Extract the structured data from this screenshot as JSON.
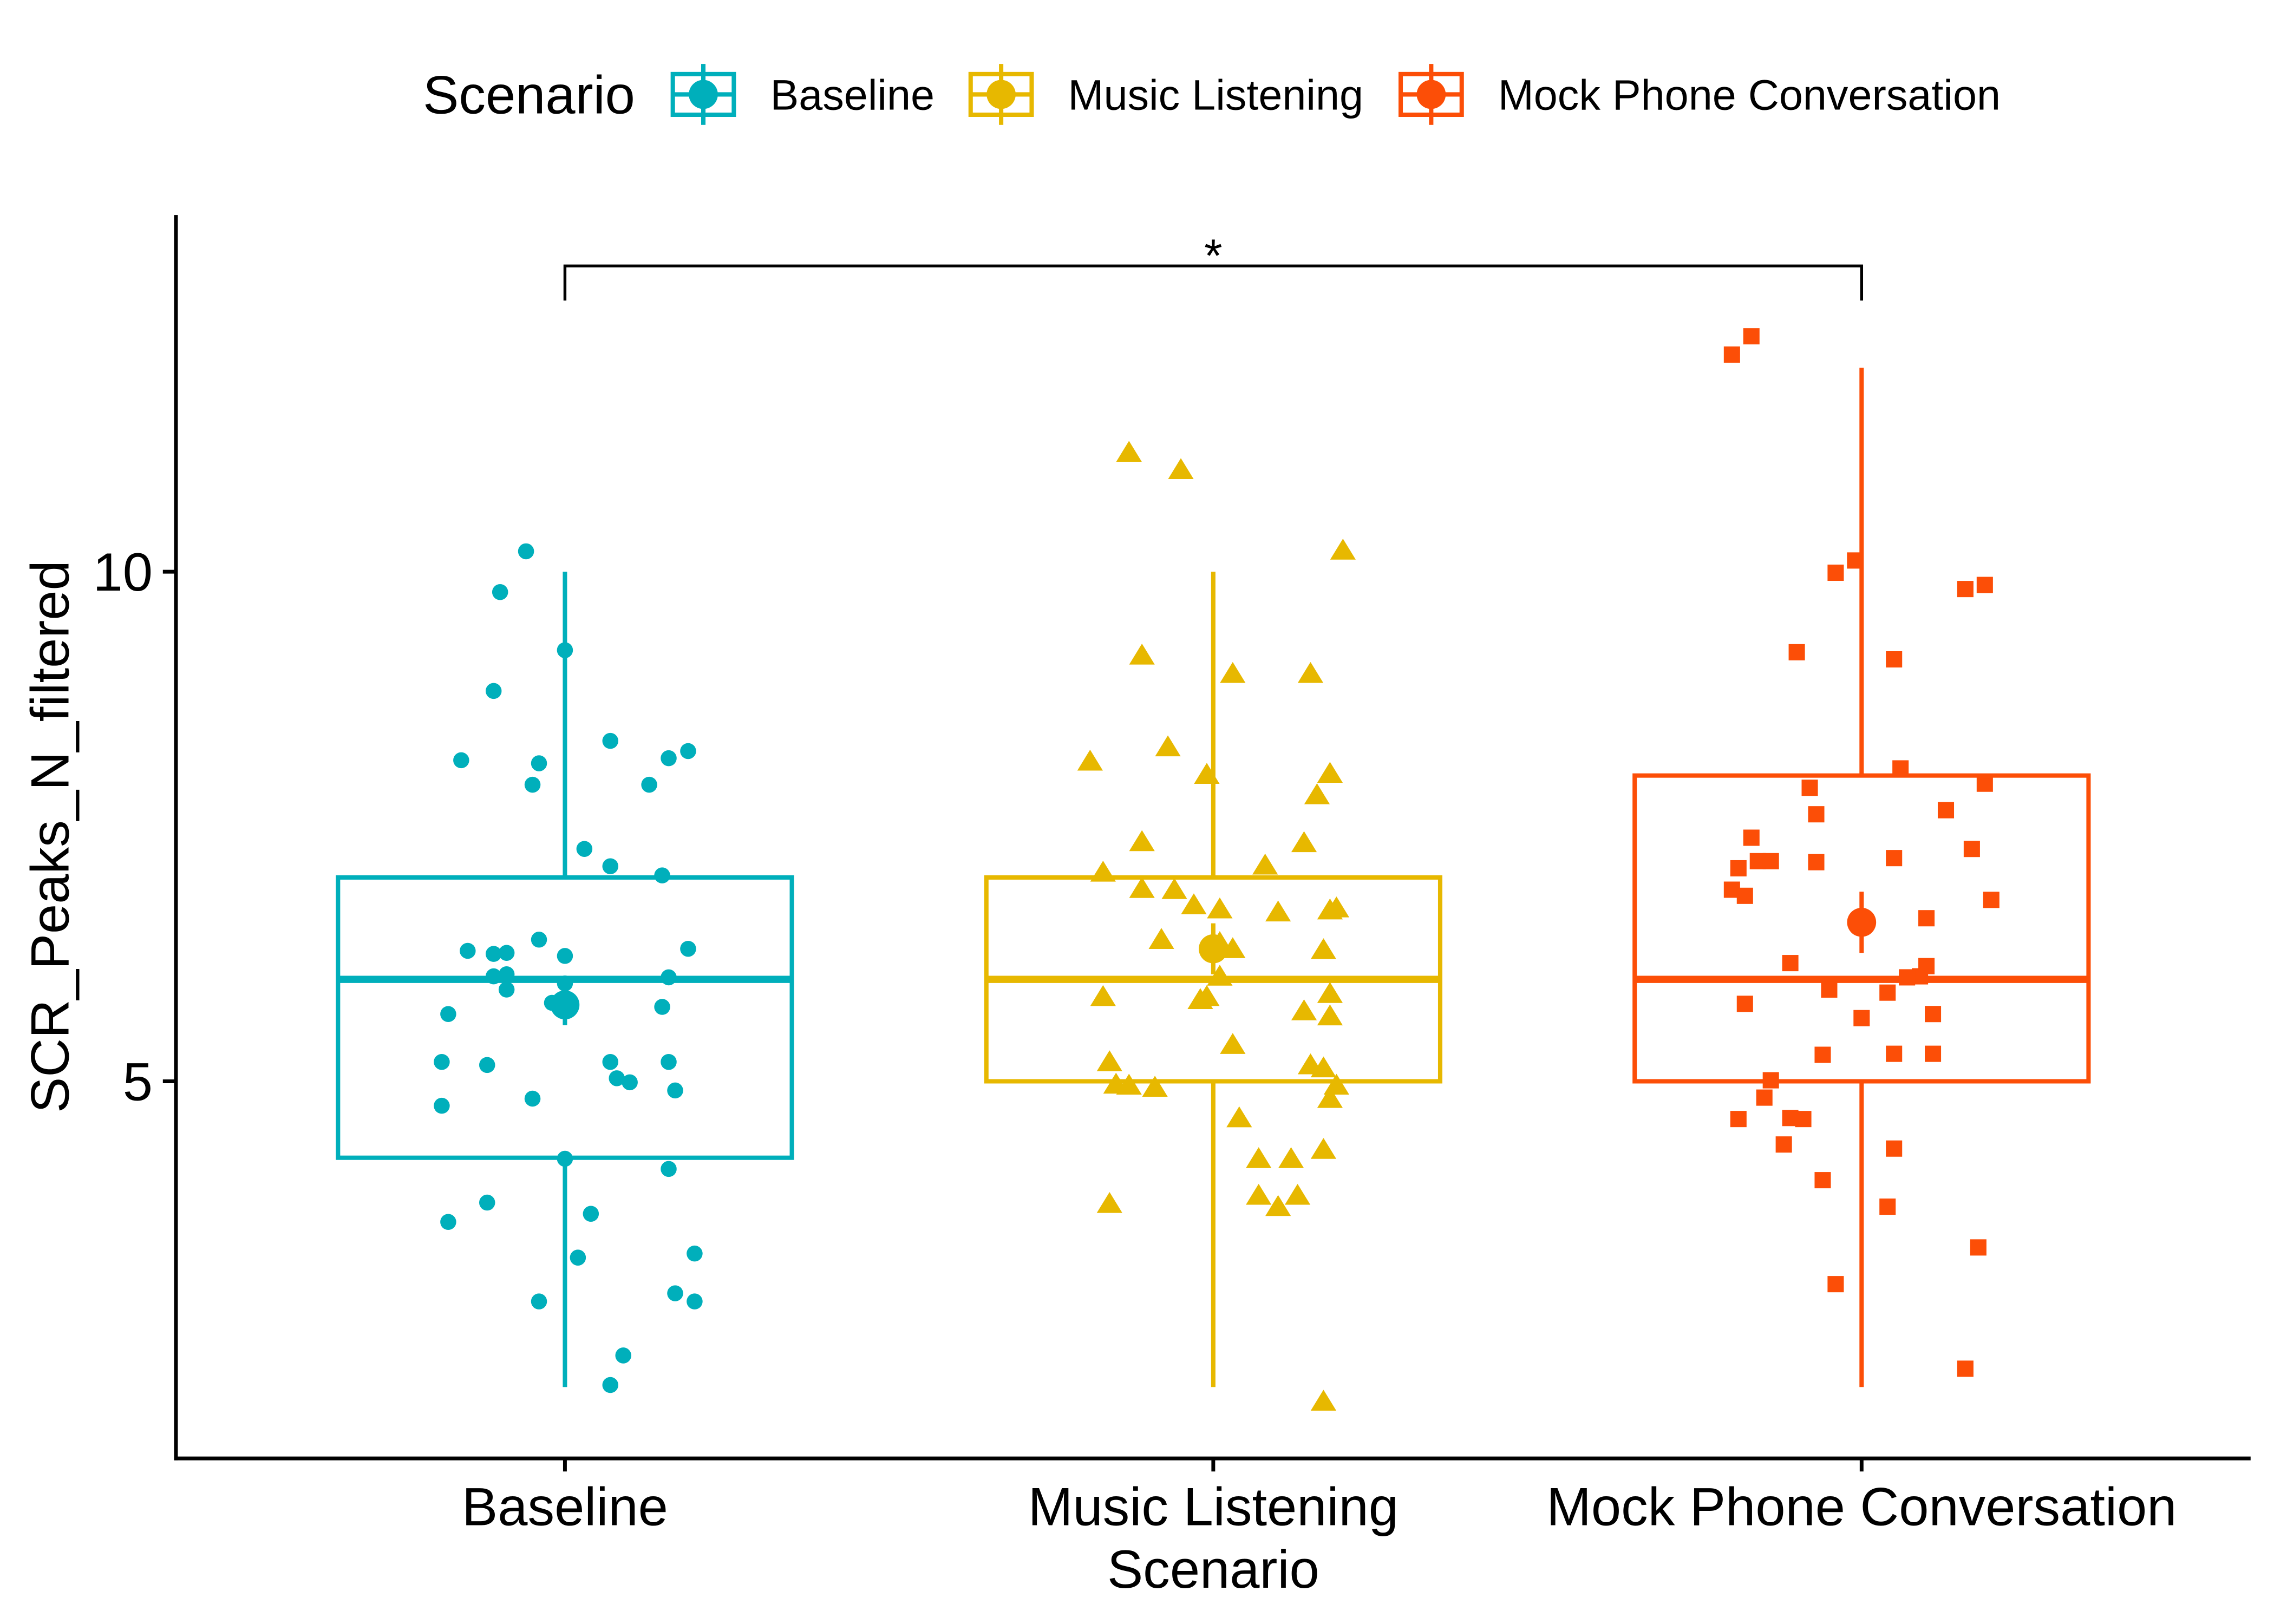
{
  "chart_data": {
    "type": "box",
    "xlabel": "Scenario",
    "ylabel": "SCR_Peaks_N_filtered",
    "categories": [
      "Baseline",
      "Music Listening",
      "Mock Phone Conversation"
    ],
    "ylim": [
      1.3,
      13.5
    ],
    "yticks": [
      5,
      10
    ],
    "grid": false,
    "legend": {
      "title": "Scenario",
      "position": "top"
    },
    "annotations": [
      {
        "label": "*",
        "between": [
          1,
          3
        ]
      }
    ],
    "series": [
      {
        "name": "Baseline",
        "color": "#00AFBB",
        "marker": "circle",
        "box": {
          "whisker_low": 2,
          "q1": 4.25,
          "median": 6,
          "q3": 7,
          "whisker_high": 10
        },
        "mean": 5.75,
        "mean_interval": [
          5.55,
          5.95
        ],
        "points": [
          [
            0.94,
            10.2
          ],
          [
            0.9,
            9.8
          ],
          [
            1.0,
            9.23
          ],
          [
            0.89,
            8.83
          ],
          [
            1.07,
            8.34
          ],
          [
            0.84,
            8.15
          ],
          [
            0.96,
            8.12
          ],
          [
            1.16,
            8.17
          ],
          [
            1.19,
            8.24
          ],
          [
            0.95,
            7.91
          ],
          [
            1.13,
            7.91
          ],
          [
            1.03,
            7.28
          ],
          [
            1.07,
            7.11
          ],
          [
            1.15,
            7.02
          ],
          [
            0.85,
            6.28
          ],
          [
            0.89,
            6.25
          ],
          [
            0.91,
            6.26
          ],
          [
            0.96,
            6.39
          ],
          [
            1.0,
            6.23
          ],
          [
            1.19,
            6.3
          ],
          [
            0.89,
            6.03
          ],
          [
            0.91,
            6.05
          ],
          [
            0.91,
            5.9
          ],
          [
            1.16,
            6.02
          ],
          [
            1.0,
            5.96
          ],
          [
            0.98,
            5.77
          ],
          [
            0.82,
            5.66
          ],
          [
            1.15,
            5.73
          ],
          [
            0.81,
            5.19
          ],
          [
            0.88,
            5.16
          ],
          [
            1.07,
            5.19
          ],
          [
            1.16,
            5.19
          ],
          [
            1.08,
            5.03
          ],
          [
            1.1,
            4.99
          ],
          [
            1.17,
            4.91
          ],
          [
            0.95,
            4.83
          ],
          [
            0.81,
            4.76
          ],
          [
            1.0,
            4.24
          ],
          [
            1.16,
            4.14
          ],
          [
            0.88,
            3.81
          ],
          [
            0.82,
            3.62
          ],
          [
            1.04,
            3.7
          ],
          [
            1.02,
            3.27
          ],
          [
            1.2,
            3.31
          ],
          [
            0.96,
            2.84
          ],
          [
            1.17,
            2.92
          ],
          [
            1.2,
            2.84
          ],
          [
            1.09,
            2.31
          ],
          [
            1.07,
            2.02
          ]
        ]
      },
      {
        "name": "Music Listening",
        "color": "#E7B800",
        "marker": "triangle",
        "box": {
          "whisker_low": 2,
          "q1": 5,
          "median": 6,
          "q3": 7,
          "whisker_high": 10
        },
        "mean": 6.3,
        "mean_interval": [
          6.05,
          6.55
        ],
        "points": [
          [
            1.87,
            11.17
          ],
          [
            1.95,
            11.0
          ],
          [
            2.2,
            10.21
          ],
          [
            1.89,
            9.18
          ],
          [
            2.03,
            9.0
          ],
          [
            2.15,
            9.0
          ],
          [
            1.93,
            8.28
          ],
          [
            1.81,
            8.14
          ],
          [
            1.99,
            8.01
          ],
          [
            2.18,
            8.02
          ],
          [
            2.16,
            7.81
          ],
          [
            1.89,
            7.35
          ],
          [
            2.14,
            7.34
          ],
          [
            2.08,
            7.12
          ],
          [
            1.83,
            7.05
          ],
          [
            1.89,
            6.89
          ],
          [
            1.94,
            6.88
          ],
          [
            1.97,
            6.73
          ],
          [
            2.01,
            6.69
          ],
          [
            2.1,
            6.66
          ],
          [
            2.18,
            6.68
          ],
          [
            2.19,
            6.7
          ],
          [
            1.92,
            6.39
          ],
          [
            2.01,
            6.36
          ],
          [
            2.03,
            6.3
          ],
          [
            2.17,
            6.29
          ],
          [
            2.01,
            6.03
          ],
          [
            1.83,
            5.83
          ],
          [
            1.98,
            5.8
          ],
          [
            1.99,
            5.83
          ],
          [
            2.18,
            5.86
          ],
          [
            2.14,
            5.69
          ],
          [
            2.18,
            5.64
          ],
          [
            2.03,
            5.36
          ],
          [
            1.84,
            5.19
          ],
          [
            2.15,
            5.16
          ],
          [
            2.17,
            5.13
          ],
          [
            1.85,
            4.97
          ],
          [
            1.87,
            4.96
          ],
          [
            1.91,
            4.94
          ],
          [
            2.19,
            4.96
          ],
          [
            2.18,
            4.83
          ],
          [
            2.04,
            4.64
          ],
          [
            2.07,
            4.24
          ],
          [
            2.12,
            4.24
          ],
          [
            2.17,
            4.33
          ],
          [
            2.07,
            3.88
          ],
          [
            2.1,
            3.77
          ],
          [
            2.13,
            3.88
          ],
          [
            1.84,
            3.8
          ],
          [
            2.17,
            1.86
          ]
        ]
      },
      {
        "name": "Mock Phone Conversation",
        "color": "#FC4E07",
        "marker": "square",
        "box": {
          "whisker_low": 2,
          "q1": 5,
          "median": 6,
          "q3": 8,
          "whisker_high": 12
        },
        "mean": 6.56,
        "mean_interval": [
          6.26,
          6.86
        ],
        "points": [
          [
            2.83,
            12.31
          ],
          [
            2.8,
            12.13
          ],
          [
            2.99,
            10.11
          ],
          [
            2.96,
            9.99
          ],
          [
            3.19,
            9.87
          ],
          [
            3.16,
            9.83
          ],
          [
            2.9,
            9.21
          ],
          [
            3.05,
            9.14
          ],
          [
            3.06,
            8.07
          ],
          [
            3.19,
            7.92
          ],
          [
            2.92,
            7.88
          ],
          [
            3.13,
            7.66
          ],
          [
            2.93,
            7.62
          ],
          [
            2.83,
            7.39
          ],
          [
            3.17,
            7.28
          ],
          [
            2.84,
            7.16
          ],
          [
            2.86,
            7.16
          ],
          [
            3.05,
            7.19
          ],
          [
            2.81,
            7.09
          ],
          [
            2.93,
            7.15
          ],
          [
            2.8,
            6.88
          ],
          [
            2.82,
            6.82
          ],
          [
            3.2,
            6.78
          ],
          [
            3.1,
            6.6
          ],
          [
            2.89,
            6.16
          ],
          [
            3.1,
            6.13
          ],
          [
            3.09,
            6.03
          ],
          [
            2.95,
            5.9
          ],
          [
            3.04,
            5.87
          ],
          [
            3.07,
            6.02
          ],
          [
            2.82,
            5.76
          ],
          [
            3.11,
            5.66
          ],
          [
            3.0,
            5.62
          ],
          [
            2.94,
            5.26
          ],
          [
            3.05,
            5.27
          ],
          [
            3.11,
            5.27
          ],
          [
            2.86,
            5.01
          ],
          [
            2.85,
            4.84
          ],
          [
            2.81,
            4.63
          ],
          [
            2.89,
            4.64
          ],
          [
            2.91,
            4.63
          ],
          [
            2.88,
            4.38
          ],
          [
            3.05,
            4.34
          ],
          [
            2.94,
            4.03
          ],
          [
            3.04,
            3.77
          ],
          [
            3.18,
            3.37
          ],
          [
            2.96,
            3.01
          ],
          [
            3.16,
            2.18
          ]
        ]
      }
    ]
  }
}
